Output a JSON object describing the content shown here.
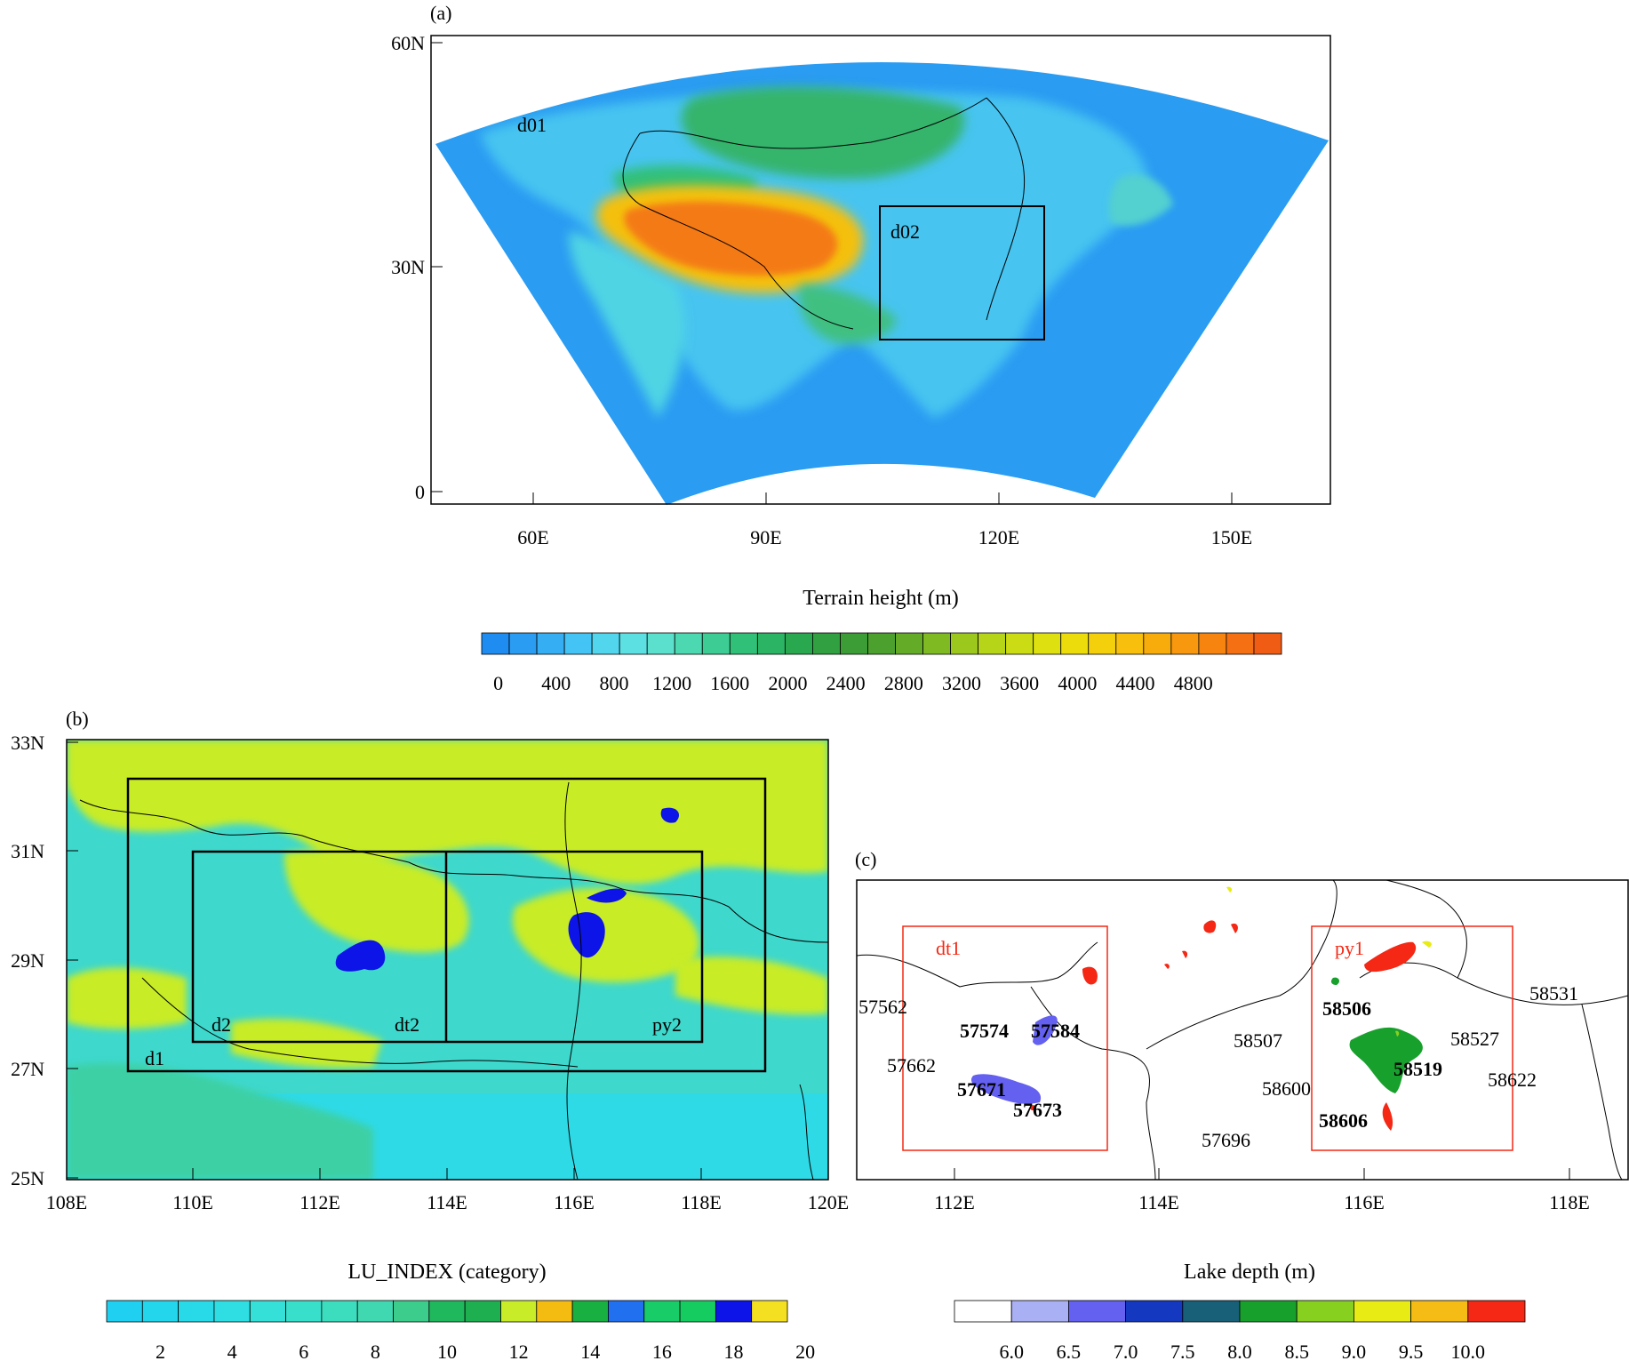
{
  "panel_a": {
    "label": "(a)",
    "domains": [
      "d01",
      "d02"
    ],
    "lat_ticks": [
      "60N",
      "30N",
      "0"
    ],
    "lon_ticks": [
      "60E",
      "90E",
      "120E",
      "150E"
    ],
    "colorbar": {
      "title": "Terrain height (m)",
      "ticks": [
        "0",
        "400",
        "800",
        "1200",
        "1600",
        "2000",
        "2400",
        "2800",
        "3200",
        "3600",
        "4000",
        "4400",
        "4800"
      ],
      "colors": [
        "#1e8cf0",
        "#2a9cf2",
        "#36aef4",
        "#44c4f4",
        "#52d6ee",
        "#5ce0e2",
        "#5ae0cc",
        "#4cd8b0",
        "#3ccc94",
        "#30c078",
        "#2ab464",
        "#2aa850",
        "#30a040",
        "#3c9c36",
        "#4ca02e",
        "#64ac28",
        "#80ba22",
        "#9cc81e",
        "#b6d418",
        "#ccdc14",
        "#dee010",
        "#ecdc0c",
        "#f4d00c",
        "#f8c00c",
        "#f8ac0c",
        "#f8980e",
        "#f88410",
        "#f47012",
        "#f05c14"
      ]
    }
  },
  "panel_b": {
    "label": "(b)",
    "boxes": [
      "d1",
      "d2",
      "dt2",
      "py2"
    ],
    "lat_ticks": [
      "33N",
      "31N",
      "29N",
      "27N",
      "25N"
    ],
    "lon_ticks": [
      "108E",
      "110E",
      "112E",
      "114E",
      "116E",
      "118E",
      "120E"
    ],
    "colorbar": {
      "title": "LU_INDEX (category)",
      "ticks": [
        "2",
        "4",
        "6",
        "8",
        "10",
        "12",
        "14",
        "16",
        "18",
        "20"
      ],
      "colors": [
        "#20d0f0",
        "#24d6ec",
        "#28dae8",
        "#2edee2",
        "#34e0d8",
        "#38e0cc",
        "#3cdcbe",
        "#40d8b0",
        "#3ccc8c",
        "#20b85c",
        "#1eb050",
        "#c8ec28",
        "#f4bc10",
        "#18b040",
        "#2070f0",
        "#18cc68",
        "#14cc60",
        "#0c14e8",
        "#f4e020"
      ]
    }
  },
  "panel_c": {
    "label": "(c)",
    "boxes": [
      "dt1",
      "py1"
    ],
    "stations_regular": [
      "57562",
      "57662",
      "58507",
      "58600",
      "57696",
      "58527",
      "58622",
      "58531"
    ],
    "stations_bold": [
      "57574",
      "57584",
      "57671",
      "57673",
      "58506",
      "58519",
      "58606"
    ],
    "lon_ticks": [
      "112E",
      "114E",
      "116E",
      "118E"
    ],
    "colorbar": {
      "title": "Lake depth (m)",
      "ticks": [
        "6.0",
        "6.5",
        "7.0",
        "7.5",
        "8.0",
        "8.5",
        "9.0",
        "9.5",
        "10.0"
      ],
      "colors": [
        "#ffffff",
        "#aab0f4",
        "#6460f0",
        "#1438c0",
        "#186078",
        "#18a02c",
        "#88d020",
        "#e8ec14",
        "#f4bc14",
        "#f42814"
      ]
    }
  }
}
